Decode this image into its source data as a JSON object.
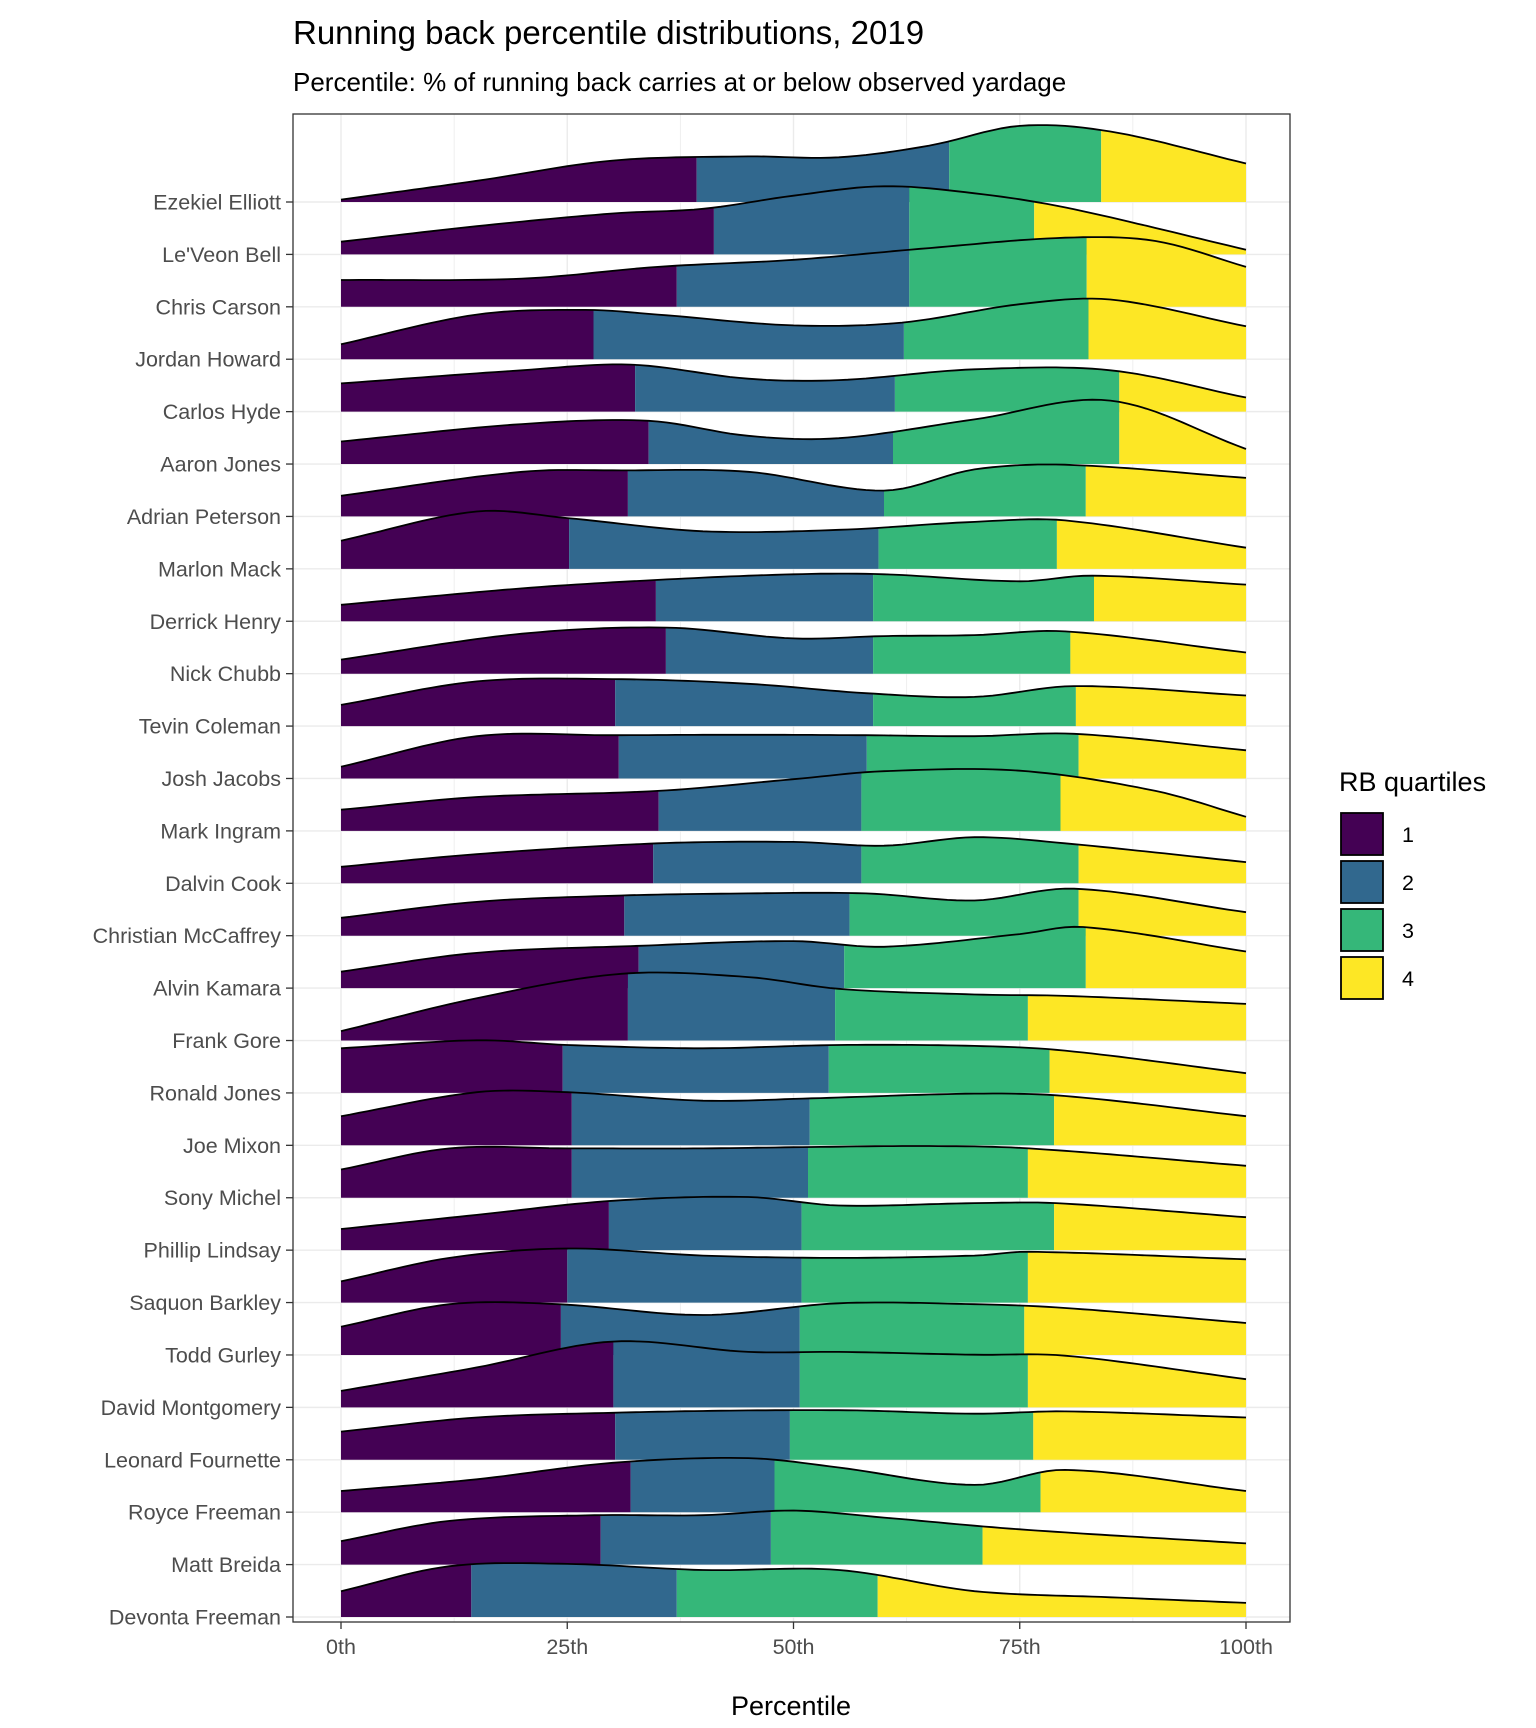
{
  "chart_data": {
    "type": "ridgeline",
    "title": "Running back percentile distributions, 2019",
    "subtitle": "Percentile: % of running back carries at or below observed yardage",
    "xlabel": "Percentile",
    "ylabel": "",
    "xlim": [
      0,
      100
    ],
    "x_ticks": [
      "0th",
      "25th",
      "50th",
      "75th",
      "100th"
    ],
    "grid": true,
    "legend": {
      "title": "RB quartiles",
      "position": "right",
      "items": [
        {
          "label": "1",
          "color": "#440154"
        },
        {
          "label": "2",
          "color": "#31688E"
        },
        {
          "label": "3",
          "color": "#35B779"
        },
        {
          "label": "4",
          "color": "#FDE725"
        }
      ]
    },
    "series_note_quartile_breaks_in_percentile_units": true,
    "players": [
      {
        "name": "Ezekiel Elliott",
        "quartile_breaks": [
          39.3,
          67.2,
          84.0
        ],
        "density": [
          [
            0,
            0.05
          ],
          [
            15,
            0.45
          ],
          [
            30,
            0.88
          ],
          [
            45,
            0.97
          ],
          [
            55,
            0.95
          ],
          [
            65,
            1.2
          ],
          [
            75,
            1.62
          ],
          [
            85,
            1.5
          ],
          [
            100,
            0.82
          ]
        ]
      },
      {
        "name": "Le'Veon Bell",
        "quartile_breaks": [
          41.2,
          62.8,
          76.6
        ],
        "density": [
          [
            0,
            0.27
          ],
          [
            15,
            0.6
          ],
          [
            30,
            0.87
          ],
          [
            40,
            0.97
          ],
          [
            50,
            1.25
          ],
          [
            60,
            1.45
          ],
          [
            70,
            1.3
          ],
          [
            80,
            1.0
          ],
          [
            100,
            0.1
          ]
        ]
      },
      {
        "name": "Chris Carson",
        "quartile_breaks": [
          37.1,
          62.8,
          82.4
        ],
        "density": [
          [
            0,
            0.57
          ],
          [
            20,
            0.6
          ],
          [
            35,
            0.85
          ],
          [
            50,
            1.0
          ],
          [
            65,
            1.25
          ],
          [
            80,
            1.47
          ],
          [
            90,
            1.4
          ],
          [
            100,
            0.85
          ]
        ]
      },
      {
        "name": "Jordan Howard",
        "quartile_breaks": [
          27.9,
          62.2,
          82.6
        ],
        "density": [
          [
            0,
            0.32
          ],
          [
            15,
            0.95
          ],
          [
            27,
            1.05
          ],
          [
            35,
            0.95
          ],
          [
            50,
            0.72
          ],
          [
            62,
            0.78
          ],
          [
            75,
            1.17
          ],
          [
            85,
            1.27
          ],
          [
            100,
            0.7
          ]
        ]
      },
      {
        "name": "Carlos Hyde",
        "quartile_breaks": [
          32.5,
          61.2,
          86.0
        ],
        "density": [
          [
            0,
            0.6
          ],
          [
            20,
            0.88
          ],
          [
            32,
            1.0
          ],
          [
            45,
            0.7
          ],
          [
            55,
            0.67
          ],
          [
            70,
            0.9
          ],
          [
            85,
            0.88
          ],
          [
            100,
            0.3
          ]
        ]
      },
      {
        "name": "Aaron Jones",
        "quartile_breaks": [
          34.0,
          61.0,
          86.0
        ],
        "density": [
          [
            0,
            0.48
          ],
          [
            20,
            0.85
          ],
          [
            34,
            0.92
          ],
          [
            45,
            0.6
          ],
          [
            55,
            0.55
          ],
          [
            70,
            0.95
          ],
          [
            85,
            1.35
          ],
          [
            100,
            0.32
          ]
        ]
      },
      {
        "name": "Adrian Peterson",
        "quartile_breaks": [
          31.7,
          60.0,
          82.3
        ],
        "density": [
          [
            0,
            0.44
          ],
          [
            20,
            0.95
          ],
          [
            31,
            0.98
          ],
          [
            45,
            0.95
          ],
          [
            60,
            0.55
          ],
          [
            70,
            1.0
          ],
          [
            80,
            1.1
          ],
          [
            100,
            0.82
          ]
        ]
      },
      {
        "name": "Marlon Mack",
        "quartile_breaks": [
          25.2,
          59.4,
          79.1
        ],
        "density": [
          [
            0,
            0.6
          ],
          [
            15,
            1.22
          ],
          [
            25,
            1.08
          ],
          [
            40,
            0.8
          ],
          [
            55,
            0.83
          ],
          [
            70,
            1.0
          ],
          [
            80,
            1.03
          ],
          [
            100,
            0.45
          ]
        ]
      },
      {
        "name": "Derrick Henry",
        "quartile_breaks": [
          34.8,
          58.8,
          83.2
        ],
        "density": [
          [
            0,
            0.35
          ],
          [
            20,
            0.7
          ],
          [
            35,
            0.88
          ],
          [
            50,
            1.0
          ],
          [
            60,
            1.0
          ],
          [
            75,
            0.85
          ],
          [
            83,
            0.97
          ],
          [
            100,
            0.78
          ]
        ]
      },
      {
        "name": "Nick Chubb",
        "quartile_breaks": [
          35.9,
          58.8,
          80.6
        ],
        "density": [
          [
            0,
            0.3
          ],
          [
            20,
            0.85
          ],
          [
            36,
            0.98
          ],
          [
            50,
            0.75
          ],
          [
            60,
            0.8
          ],
          [
            70,
            0.82
          ],
          [
            80,
            0.9
          ],
          [
            100,
            0.45
          ]
        ]
      },
      {
        "name": "Tevin Coleman",
        "quartile_breaks": [
          30.3,
          58.8,
          81.2
        ],
        "density": [
          [
            0,
            0.45
          ],
          [
            15,
            0.95
          ],
          [
            30,
            1.0
          ],
          [
            45,
            0.9
          ],
          [
            58,
            0.7
          ],
          [
            70,
            0.62
          ],
          [
            81,
            0.85
          ],
          [
            100,
            0.65
          ]
        ]
      },
      {
        "name": "Josh Jacobs",
        "quartile_breaks": [
          30.7,
          58.1,
          81.5
        ],
        "density": [
          [
            0,
            0.25
          ],
          [
            15,
            0.9
          ],
          [
            30,
            0.92
          ],
          [
            45,
            0.93
          ],
          [
            58,
            0.92
          ],
          [
            70,
            0.9
          ],
          [
            81,
            0.95
          ],
          [
            100,
            0.6
          ]
        ]
      },
      {
        "name": "Mark Ingram",
        "quartile_breaks": [
          35.1,
          57.5,
          79.5
        ],
        "density": [
          [
            0,
            0.45
          ],
          [
            15,
            0.72
          ],
          [
            35,
            0.85
          ],
          [
            50,
            1.1
          ],
          [
            60,
            1.27
          ],
          [
            75,
            1.28
          ],
          [
            90,
            0.85
          ],
          [
            100,
            0.3
          ]
        ]
      },
      {
        "name": "Dalvin Cook",
        "quartile_breaks": [
          34.5,
          57.5,
          81.5
        ],
        "density": [
          [
            0,
            0.35
          ],
          [
            15,
            0.62
          ],
          [
            35,
            0.85
          ],
          [
            50,
            0.88
          ],
          [
            60,
            0.8
          ],
          [
            70,
            0.98
          ],
          [
            80,
            0.85
          ],
          [
            100,
            0.45
          ]
        ]
      },
      {
        "name": "Christian McCaffrey",
        "quartile_breaks": [
          31.3,
          56.2,
          81.5
        ],
        "density": [
          [
            0,
            0.38
          ],
          [
            15,
            0.72
          ],
          [
            30,
            0.85
          ],
          [
            45,
            0.9
          ],
          [
            58,
            0.9
          ],
          [
            70,
            0.75
          ],
          [
            81,
            1.0
          ],
          [
            100,
            0.5
          ]
        ]
      },
      {
        "name": "Alvin Kamara",
        "quartile_breaks": [
          32.9,
          55.6,
          82.3
        ],
        "density": [
          [
            0,
            0.35
          ],
          [
            15,
            0.75
          ],
          [
            33,
            0.9
          ],
          [
            50,
            1.0
          ],
          [
            60,
            0.88
          ],
          [
            75,
            1.15
          ],
          [
            82,
            1.3
          ],
          [
            100,
            0.78
          ]
        ]
      },
      {
        "name": "Frank Gore",
        "quartile_breaks": [
          31.7,
          54.6,
          75.9
        ],
        "density": [
          [
            0,
            0.2
          ],
          [
            15,
            0.9
          ],
          [
            31,
            1.42
          ],
          [
            45,
            1.35
          ],
          [
            55,
            1.1
          ],
          [
            70,
            0.98
          ],
          [
            80,
            0.95
          ],
          [
            100,
            0.78
          ]
        ]
      },
      {
        "name": "Ronald Jones",
        "quartile_breaks": [
          24.5,
          53.9,
          78.3
        ],
        "density": [
          [
            0,
            0.95
          ],
          [
            15,
            1.12
          ],
          [
            25,
            1.02
          ],
          [
            40,
            0.95
          ],
          [
            55,
            1.02
          ],
          [
            70,
            1.0
          ],
          [
            80,
            0.9
          ],
          [
            100,
            0.42
          ]
        ]
      },
      {
        "name": "Joe Mixon",
        "quartile_breaks": [
          25.5,
          51.8,
          78.8
        ],
        "density": [
          [
            0,
            0.62
          ],
          [
            15,
            1.13
          ],
          [
            25,
            1.13
          ],
          [
            40,
            0.95
          ],
          [
            52,
            1.0
          ],
          [
            70,
            1.1
          ],
          [
            80,
            1.05
          ],
          [
            100,
            0.62
          ]
        ]
      },
      {
        "name": "Sony Michel",
        "quartile_breaks": [
          25.5,
          51.6,
          75.9
        ],
        "density": [
          [
            0,
            0.6
          ],
          [
            12,
            1.05
          ],
          [
            25,
            1.05
          ],
          [
            40,
            1.05
          ],
          [
            52,
            1.08
          ],
          [
            65,
            1.1
          ],
          [
            76,
            1.05
          ],
          [
            100,
            0.68
          ]
        ]
      },
      {
        "name": "Phillip Lindsay",
        "quartile_breaks": [
          29.6,
          50.9,
          78.8
        ],
        "density": [
          [
            0,
            0.45
          ],
          [
            15,
            0.75
          ],
          [
            30,
            1.05
          ],
          [
            45,
            1.13
          ],
          [
            55,
            0.95
          ],
          [
            70,
            1.0
          ],
          [
            79,
            1.0
          ],
          [
            100,
            0.7
          ]
        ]
      },
      {
        "name": "Saquon Barkley",
        "quartile_breaks": [
          25.0,
          50.9,
          75.9
        ],
        "density": [
          [
            0,
            0.45
          ],
          [
            12,
            0.95
          ],
          [
            25,
            1.15
          ],
          [
            40,
            1.0
          ],
          [
            55,
            0.95
          ],
          [
            70,
            1.0
          ],
          [
            76,
            1.08
          ],
          [
            100,
            0.92
          ]
        ]
      },
      {
        "name": "Todd Gurley",
        "quartile_breaks": [
          24.3,
          50.7,
          75.5
        ],
        "density": [
          [
            0,
            0.6
          ],
          [
            12,
            1.08
          ],
          [
            24,
            1.08
          ],
          [
            40,
            0.85
          ],
          [
            55,
            1.1
          ],
          [
            70,
            1.08
          ],
          [
            80,
            1.0
          ],
          [
            100,
            0.68
          ]
        ]
      },
      {
        "name": "David Montgomery",
        "quartile_breaks": [
          30.1,
          50.7,
          75.9
        ],
        "density": [
          [
            0,
            0.35
          ],
          [
            15,
            0.85
          ],
          [
            30,
            1.4
          ],
          [
            45,
            1.18
          ],
          [
            55,
            1.18
          ],
          [
            70,
            1.12
          ],
          [
            80,
            1.1
          ],
          [
            100,
            0.6
          ]
        ]
      },
      {
        "name": "Leonard Fournette",
        "quartile_breaks": [
          30.3,
          49.6,
          76.5
        ],
        "density": [
          [
            0,
            0.6
          ],
          [
            15,
            0.9
          ],
          [
            30,
            1.0
          ],
          [
            45,
            1.05
          ],
          [
            57,
            1.05
          ],
          [
            70,
            0.98
          ],
          [
            80,
            1.03
          ],
          [
            100,
            0.9
          ]
        ]
      },
      {
        "name": "Royce Freeman",
        "quartile_breaks": [
          32.0,
          47.9,
          77.3
        ],
        "density": [
          [
            0,
            0.45
          ],
          [
            15,
            0.7
          ],
          [
            30,
            1.05
          ],
          [
            45,
            1.15
          ],
          [
            55,
            0.95
          ],
          [
            70,
            0.58
          ],
          [
            80,
            0.9
          ],
          [
            100,
            0.45
          ]
        ]
      },
      {
        "name": "Matt Breida",
        "quartile_breaks": [
          28.7,
          47.5,
          70.9
        ],
        "density": [
          [
            0,
            0.5
          ],
          [
            12,
            0.93
          ],
          [
            28,
            1.05
          ],
          [
            40,
            1.05
          ],
          [
            50,
            1.15
          ],
          [
            60,
            1.0
          ],
          [
            75,
            0.75
          ],
          [
            100,
            0.45
          ]
        ]
      },
      {
        "name": "Devonta Freeman",
        "quartile_breaks": [
          14.4,
          37.1,
          59.3
        ],
        "density": [
          [
            0,
            0.55
          ],
          [
            12,
            1.08
          ],
          [
            25,
            1.13
          ],
          [
            40,
            1.0
          ],
          [
            55,
            1.0
          ],
          [
            70,
            0.55
          ],
          [
            85,
            0.42
          ],
          [
            100,
            0.3
          ]
        ]
      }
    ]
  }
}
